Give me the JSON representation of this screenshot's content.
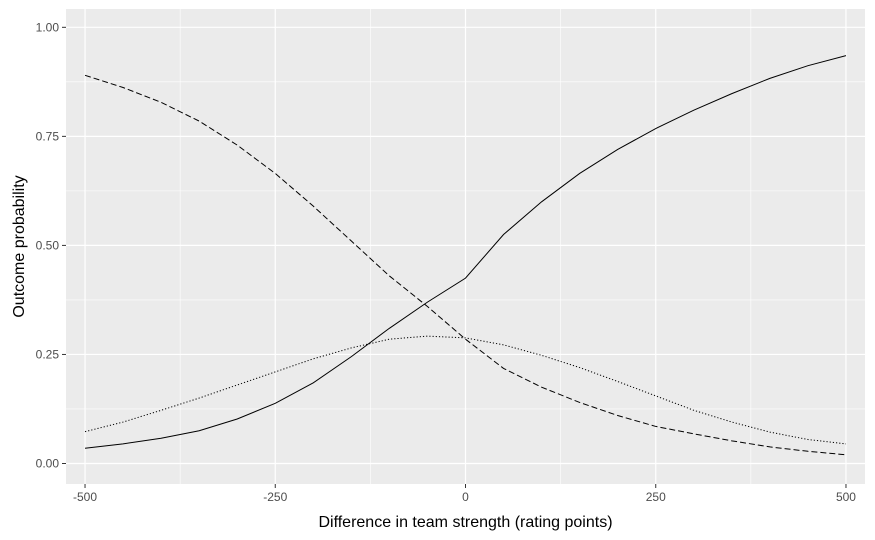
{
  "chart_data": {
    "type": "line",
    "title": "",
    "xlabel": "Difference in team strength (rating points)",
    "ylabel": "Outcome probability",
    "xlim": [
      -525,
      525
    ],
    "ylim": [
      -0.047,
      1.042
    ],
    "x_ticks": [
      -500,
      -250,
      0,
      250,
      500
    ],
    "x_tick_labels": [
      "-500",
      "-250",
      "0",
      "250",
      "500"
    ],
    "y_ticks": [
      0,
      0.25,
      0.5,
      0.75,
      1
    ],
    "y_tick_labels": [
      "0.00",
      "0.25",
      "0.50",
      "0.75",
      "1.00"
    ],
    "grid": true,
    "legend": "none",
    "colors": {
      "panel": "#ebebeb",
      "grid": "#ffffff",
      "line": "#000000",
      "tick": "#4d4d4d"
    },
    "x": [
      -500,
      -450,
      -400,
      -350,
      -300,
      -250,
      -200,
      -150,
      -100,
      -50,
      0,
      50,
      100,
      150,
      200,
      250,
      300,
      350,
      400,
      450,
      500
    ],
    "series": [
      {
        "linestyle": "solid",
        "values": [
          0.035,
          0.045,
          0.058,
          0.075,
          0.102,
          0.138,
          0.185,
          0.245,
          0.31,
          0.37,
          0.425,
          0.525,
          0.6,
          0.665,
          0.72,
          0.768,
          0.81,
          0.848,
          0.883,
          0.912,
          0.935
        ]
      },
      {
        "linestyle": "dashed",
        "values": [
          0.89,
          0.862,
          0.828,
          0.785,
          0.73,
          0.665,
          0.59,
          0.51,
          0.43,
          0.36,
          0.285,
          0.218,
          0.175,
          0.14,
          0.11,
          0.085,
          0.068,
          0.052,
          0.038,
          0.028,
          0.02
        ]
      },
      {
        "linestyle": "dotted",
        "values": [
          0.073,
          0.095,
          0.122,
          0.15,
          0.18,
          0.21,
          0.24,
          0.265,
          0.285,
          0.292,
          0.288,
          0.272,
          0.248,
          0.22,
          0.188,
          0.155,
          0.122,
          0.095,
          0.072,
          0.055,
          0.045
        ]
      }
    ]
  }
}
